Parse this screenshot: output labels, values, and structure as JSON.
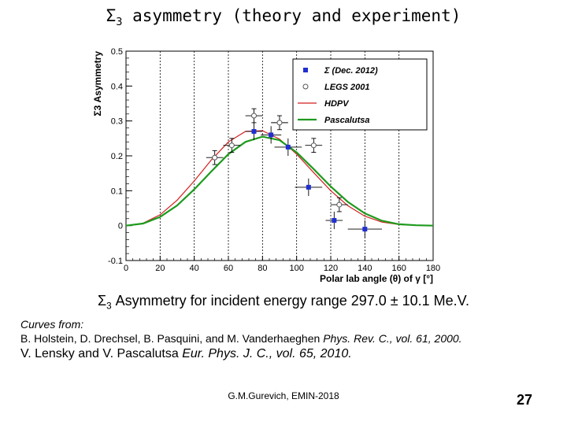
{
  "slide": {
    "title_symbol": "Σ",
    "title_sub": "3",
    "title_rest": " asymmetry (theory and experiment)",
    "caption_symbol": "Σ",
    "caption_sub": "3",
    "caption_rest": " Asymmetry for incident energy range 297.0 ± 10.1 Me.V.",
    "curves_from": "Curves from:",
    "ref1_authors": "B. Holstein, D. Drechsel, B. Pasquini, and M. Vanderhaeghen ",
    "ref1_journal": "Phys. Rev. C., vol. 61, 2000.",
    "ref2_authors": "V. Lensky and V. Pascalutsa ",
    "ref2_journal": "Eur. Phys. J. C., vol. 65, 2010.",
    "footer": "G.M.Gurevich, EMIN-2018",
    "page_number": "27"
  },
  "chart_data": {
    "type": "scatter",
    "xlabel": "Polar lab angle (θ) of γ [°]",
    "ylabel": "Σ3 Asymmetry",
    "xlim": [
      0,
      180
    ],
    "ylim": [
      -0.1,
      0.5
    ],
    "x_ticks": [
      0,
      20,
      40,
      60,
      80,
      100,
      120,
      140,
      160,
      180
    ],
    "y_ticks": [
      -0.1,
      0,
      0.1,
      0.2,
      0.3,
      0.4,
      0.5
    ],
    "x_tick_labels": [
      "0",
      "20",
      "40",
      "60",
      "80",
      "100",
      "120",
      "140",
      "160",
      "180"
    ],
    "y_tick_labels": [
      "-0.1",
      "0",
      "0.1",
      "0.2",
      "0.3",
      "0.4",
      "0.5"
    ],
    "vertical_grid_x": [
      20,
      40,
      60,
      80,
      100,
      120,
      140,
      160
    ],
    "legend_position": "top-right",
    "legend": [
      {
        "label": "Σ (Dec. 2012)",
        "marker": "square",
        "color": "#1f2fd0"
      },
      {
        "label": "LEGS 2001",
        "marker": "open-circle",
        "color": "#555555"
      },
      {
        "label": "HDPV",
        "marker": "line",
        "color": "#d21f1f"
      },
      {
        "label": "Pascalutsa",
        "marker": "line",
        "color": "#1e9a1e"
      }
    ],
    "series": [
      {
        "name": "Σ (Dec. 2012)",
        "color": "#1f2fd0",
        "points": [
          {
            "x": 75,
            "y": 0.27,
            "yerr": 0.025,
            "xerr": 5
          },
          {
            "x": 85,
            "y": 0.26,
            "yerr": 0.025,
            "xerr": 6
          },
          {
            "x": 95,
            "y": 0.225,
            "yerr": 0.025,
            "xerr": 8
          },
          {
            "x": 107,
            "y": 0.11,
            "yerr": 0.025,
            "xerr": 8
          },
          {
            "x": 122,
            "y": 0.015,
            "yerr": 0.025,
            "xerr": 5
          },
          {
            "x": 140,
            "y": -0.01,
            "yerr": 0.025,
            "xerr": 10
          }
        ]
      },
      {
        "name": "LEGS 2001",
        "color": "#555555",
        "points": [
          {
            "x": 52,
            "y": 0.195,
            "yerr": 0.02,
            "xerr": 5
          },
          {
            "x": 62,
            "y": 0.23,
            "yerr": 0.02,
            "xerr": 5
          },
          {
            "x": 75,
            "y": 0.315,
            "yerr": 0.02,
            "xerr": 5
          },
          {
            "x": 90,
            "y": 0.295,
            "yerr": 0.02,
            "xerr": 5
          },
          {
            "x": 110,
            "y": 0.23,
            "yerr": 0.02,
            "xerr": 5
          },
          {
            "x": 125,
            "y": 0.06,
            "yerr": 0.02,
            "xerr": 5
          }
        ]
      },
      {
        "name": "HDPV",
        "color": "#d21f1f",
        "x": [
          0,
          10,
          20,
          30,
          40,
          50,
          60,
          70,
          80,
          90,
          100,
          110,
          120,
          130,
          140,
          150,
          160,
          170,
          180
        ],
        "y": [
          0,
          0.007,
          0.031,
          0.073,
          0.128,
          0.188,
          0.24,
          0.27,
          0.272,
          0.248,
          0.205,
          0.152,
          0.1,
          0.057,
          0.027,
          0.01,
          0.003,
          0.001,
          0
        ]
      },
      {
        "name": "Pascalutsa",
        "color": "#1e9a1e",
        "x": [
          0,
          10,
          20,
          30,
          40,
          50,
          60,
          70,
          80,
          90,
          100,
          110,
          120,
          130,
          140,
          150,
          160,
          170,
          180
        ],
        "y": [
          0,
          0.006,
          0.025,
          0.058,
          0.104,
          0.155,
          0.205,
          0.24,
          0.255,
          0.245,
          0.21,
          0.162,
          0.112,
          0.068,
          0.035,
          0.014,
          0.004,
          0.001,
          0
        ]
      }
    ]
  }
}
